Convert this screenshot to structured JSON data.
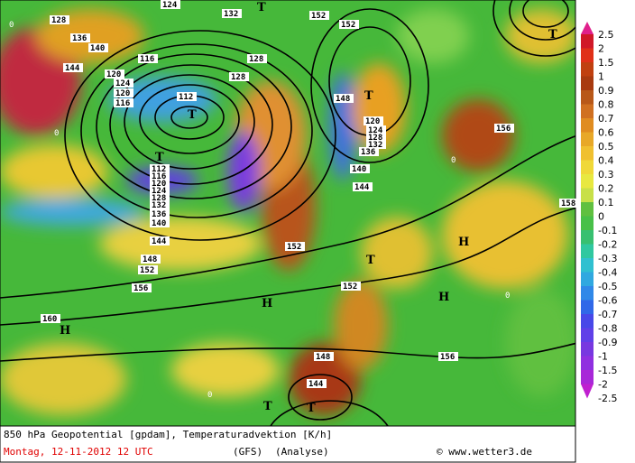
{
  "footer": {
    "caption": "850 hPa Geopotential [gpdam], Temperaturadvektion [K/h]",
    "date": "Montag, 12-11-2012  12 UTC",
    "model": "(GFS)",
    "run_type": "(Analyse)",
    "credit": "© www.wetter3.de"
  },
  "legend": {
    "labels": [
      "2.5",
      "2",
      "1.5",
      "1",
      "0.9",
      "0.8",
      "0.7",
      "0.6",
      "0.5",
      "0.4",
      "0.3",
      "0.2",
      "0.1",
      "0",
      "-0.1",
      "-0.2",
      "-0.3",
      "-0.4",
      "-0.5",
      "-0.6",
      "-0.7",
      "-0.8",
      "-0.9",
      "-1",
      "-1.5",
      "-2",
      "-2.5"
    ],
    "colors": [
      "#e0208c",
      "#d01828",
      "#e03018",
      "#c04010",
      "#a83a10",
      "#b85818",
      "#d07020",
      "#e08c20",
      "#e8a828",
      "#f0c030",
      "#f0d838",
      "#e8e840",
      "#c8e048",
      "#60c040",
      "#48c048",
      "#38c070",
      "#30c8a0",
      "#30c0d0",
      "#30a8e0",
      "#3088e8",
      "#3068e8",
      "#4848e8",
      "#6040e8",
      "#7838e0",
      "#9030e0",
      "#a828d8",
      "#c020d0"
    ]
  },
  "map_labels": [
    "128",
    "136",
    "140",
    "144",
    "124",
    "120",
    "116",
    "112",
    "124",
    "132",
    "128",
    "128",
    "120",
    "116",
    "148",
    "152",
    "112",
    "116",
    "120",
    "124",
    "128",
    "132",
    "136",
    "140",
    "144",
    "148",
    "152",
    "156",
    "160",
    "156",
    "148",
    "144",
    "156",
    "152",
    "152",
    "124",
    "128",
    "132",
    "136",
    "140",
    "120",
    "158",
    "144",
    "152",
    "T",
    "T",
    "T",
    "T",
    "T",
    "T",
    "T",
    "H",
    "H",
    "H",
    "H",
    "T",
    "0",
    "0",
    "0",
    "0",
    "0"
  ]
}
